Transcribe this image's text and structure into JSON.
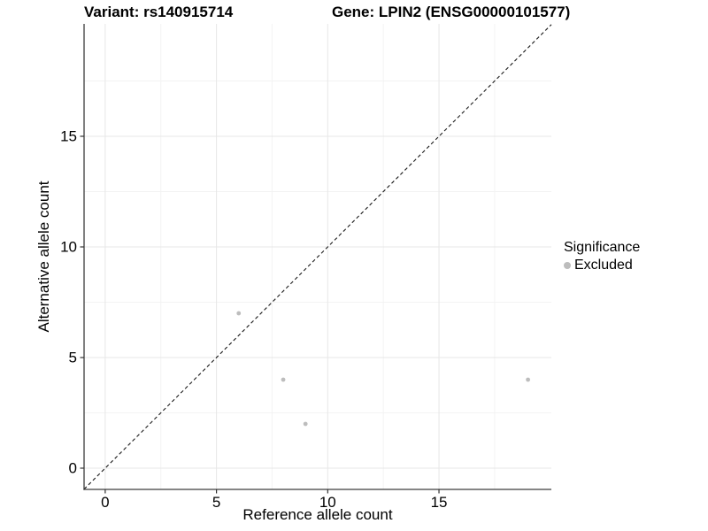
{
  "titles": {
    "left": "Variant: rs140915714",
    "right": "Gene: LPIN2 (ENSG00000101577)"
  },
  "axes": {
    "x": {
      "title": "Reference allele count"
    },
    "y": {
      "title": "Alternative allele count"
    }
  },
  "legend": {
    "title": "Significance",
    "items": [
      {
        "label": "Excluded",
        "color": "#bdbdbd"
      }
    ]
  },
  "chart_data": {
    "type": "scatter",
    "title": "Variant: rs140915714 / Gene: LPIN2 (ENSG00000101577)",
    "xlabel": "Reference allele count",
    "ylabel": "Alternative allele count",
    "xlim": [
      -0.95,
      20.05
    ],
    "ylim": [
      -0.96,
      20.08
    ],
    "x_major_ticks": [
      0,
      5,
      10,
      15
    ],
    "x_minor_ticks": [
      2.5,
      7.5,
      12.5,
      17.5
    ],
    "y_major_ticks": [
      0,
      5,
      10,
      15
    ],
    "y_minor_ticks": [
      2.5,
      7.5,
      12.5,
      17.5
    ],
    "grid": true,
    "legend_position": "right",
    "identity_line": {
      "x1": -0.95,
      "y1": -0.95,
      "x2": 20.05,
      "y2": 20.05,
      "style": "dashed"
    },
    "series": [
      {
        "name": "Excluded",
        "color": "#bdbdbd",
        "points": [
          {
            "x": 6,
            "y": 7
          },
          {
            "x": 8,
            "y": 4
          },
          {
            "x": 9,
            "y": 2
          },
          {
            "x": 19,
            "y": 4
          }
        ]
      }
    ],
    "colors": {
      "axis_line": "#3c3c3c",
      "tick": "#333333",
      "grid_major": "#e7e7e7",
      "grid_minor": "#f3f3f3",
      "identity_line": "#1a1a1a",
      "point": "#bdbdbd",
      "background": "#ffffff",
      "text": "#000000"
    }
  }
}
